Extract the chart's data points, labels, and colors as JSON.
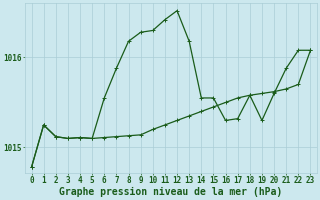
{
  "xlabel": "Graphe pression niveau de la mer (hPa)",
  "background_color": "#cce8ee",
  "grid_color": "#aacdd6",
  "line_color": "#1a5c1a",
  "xlim": [
    -0.5,
    23.5
  ],
  "ylim": [
    1014.72,
    1016.6
  ],
  "yticks": [
    1015,
    1016
  ],
  "xticks": [
    0,
    1,
    2,
    3,
    4,
    5,
    6,
    7,
    8,
    9,
    10,
    11,
    12,
    13,
    14,
    15,
    16,
    17,
    18,
    19,
    20,
    21,
    22,
    23
  ],
  "series1_x": [
    0,
    1,
    2,
    3,
    4,
    5,
    6,
    7,
    8,
    9,
    10,
    11,
    12,
    13,
    14,
    15,
    16,
    17,
    18,
    19,
    20,
    21,
    22,
    23
  ],
  "series1_y": [
    1014.78,
    1015.25,
    1015.12,
    1015.1,
    1015.11,
    1015.1,
    1015.11,
    1015.12,
    1015.13,
    1015.14,
    1015.2,
    1015.25,
    1015.3,
    1015.35,
    1015.4,
    1015.45,
    1015.5,
    1015.55,
    1015.58,
    1015.6,
    1015.62,
    1015.65,
    1015.7,
    1016.08
  ],
  "series2_x": [
    0,
    1,
    2,
    3,
    4,
    5,
    6,
    7,
    8,
    9,
    10,
    11,
    12,
    13,
    14,
    15,
    16,
    17,
    18,
    19,
    20,
    21,
    22,
    23
  ],
  "series2_y": [
    1014.78,
    1015.25,
    1015.12,
    1015.1,
    1015.11,
    1015.1,
    1015.55,
    1015.88,
    1016.18,
    1016.28,
    1016.3,
    1016.42,
    1016.52,
    1016.18,
    1015.55,
    1015.55,
    1015.3,
    1015.32,
    1015.58,
    1015.3,
    1015.6,
    1015.88,
    1016.08,
    1016.08
  ],
  "marker": "+",
  "markersize": 3.5,
  "linewidth": 0.9,
  "xlabel_fontsize": 7,
  "tick_fontsize": 5.5,
  "xlabel_color": "#1a5c1a",
  "tick_color": "#1a5c1a",
  "fig_width": 3.2,
  "fig_height": 2.0,
  "dpi": 100
}
